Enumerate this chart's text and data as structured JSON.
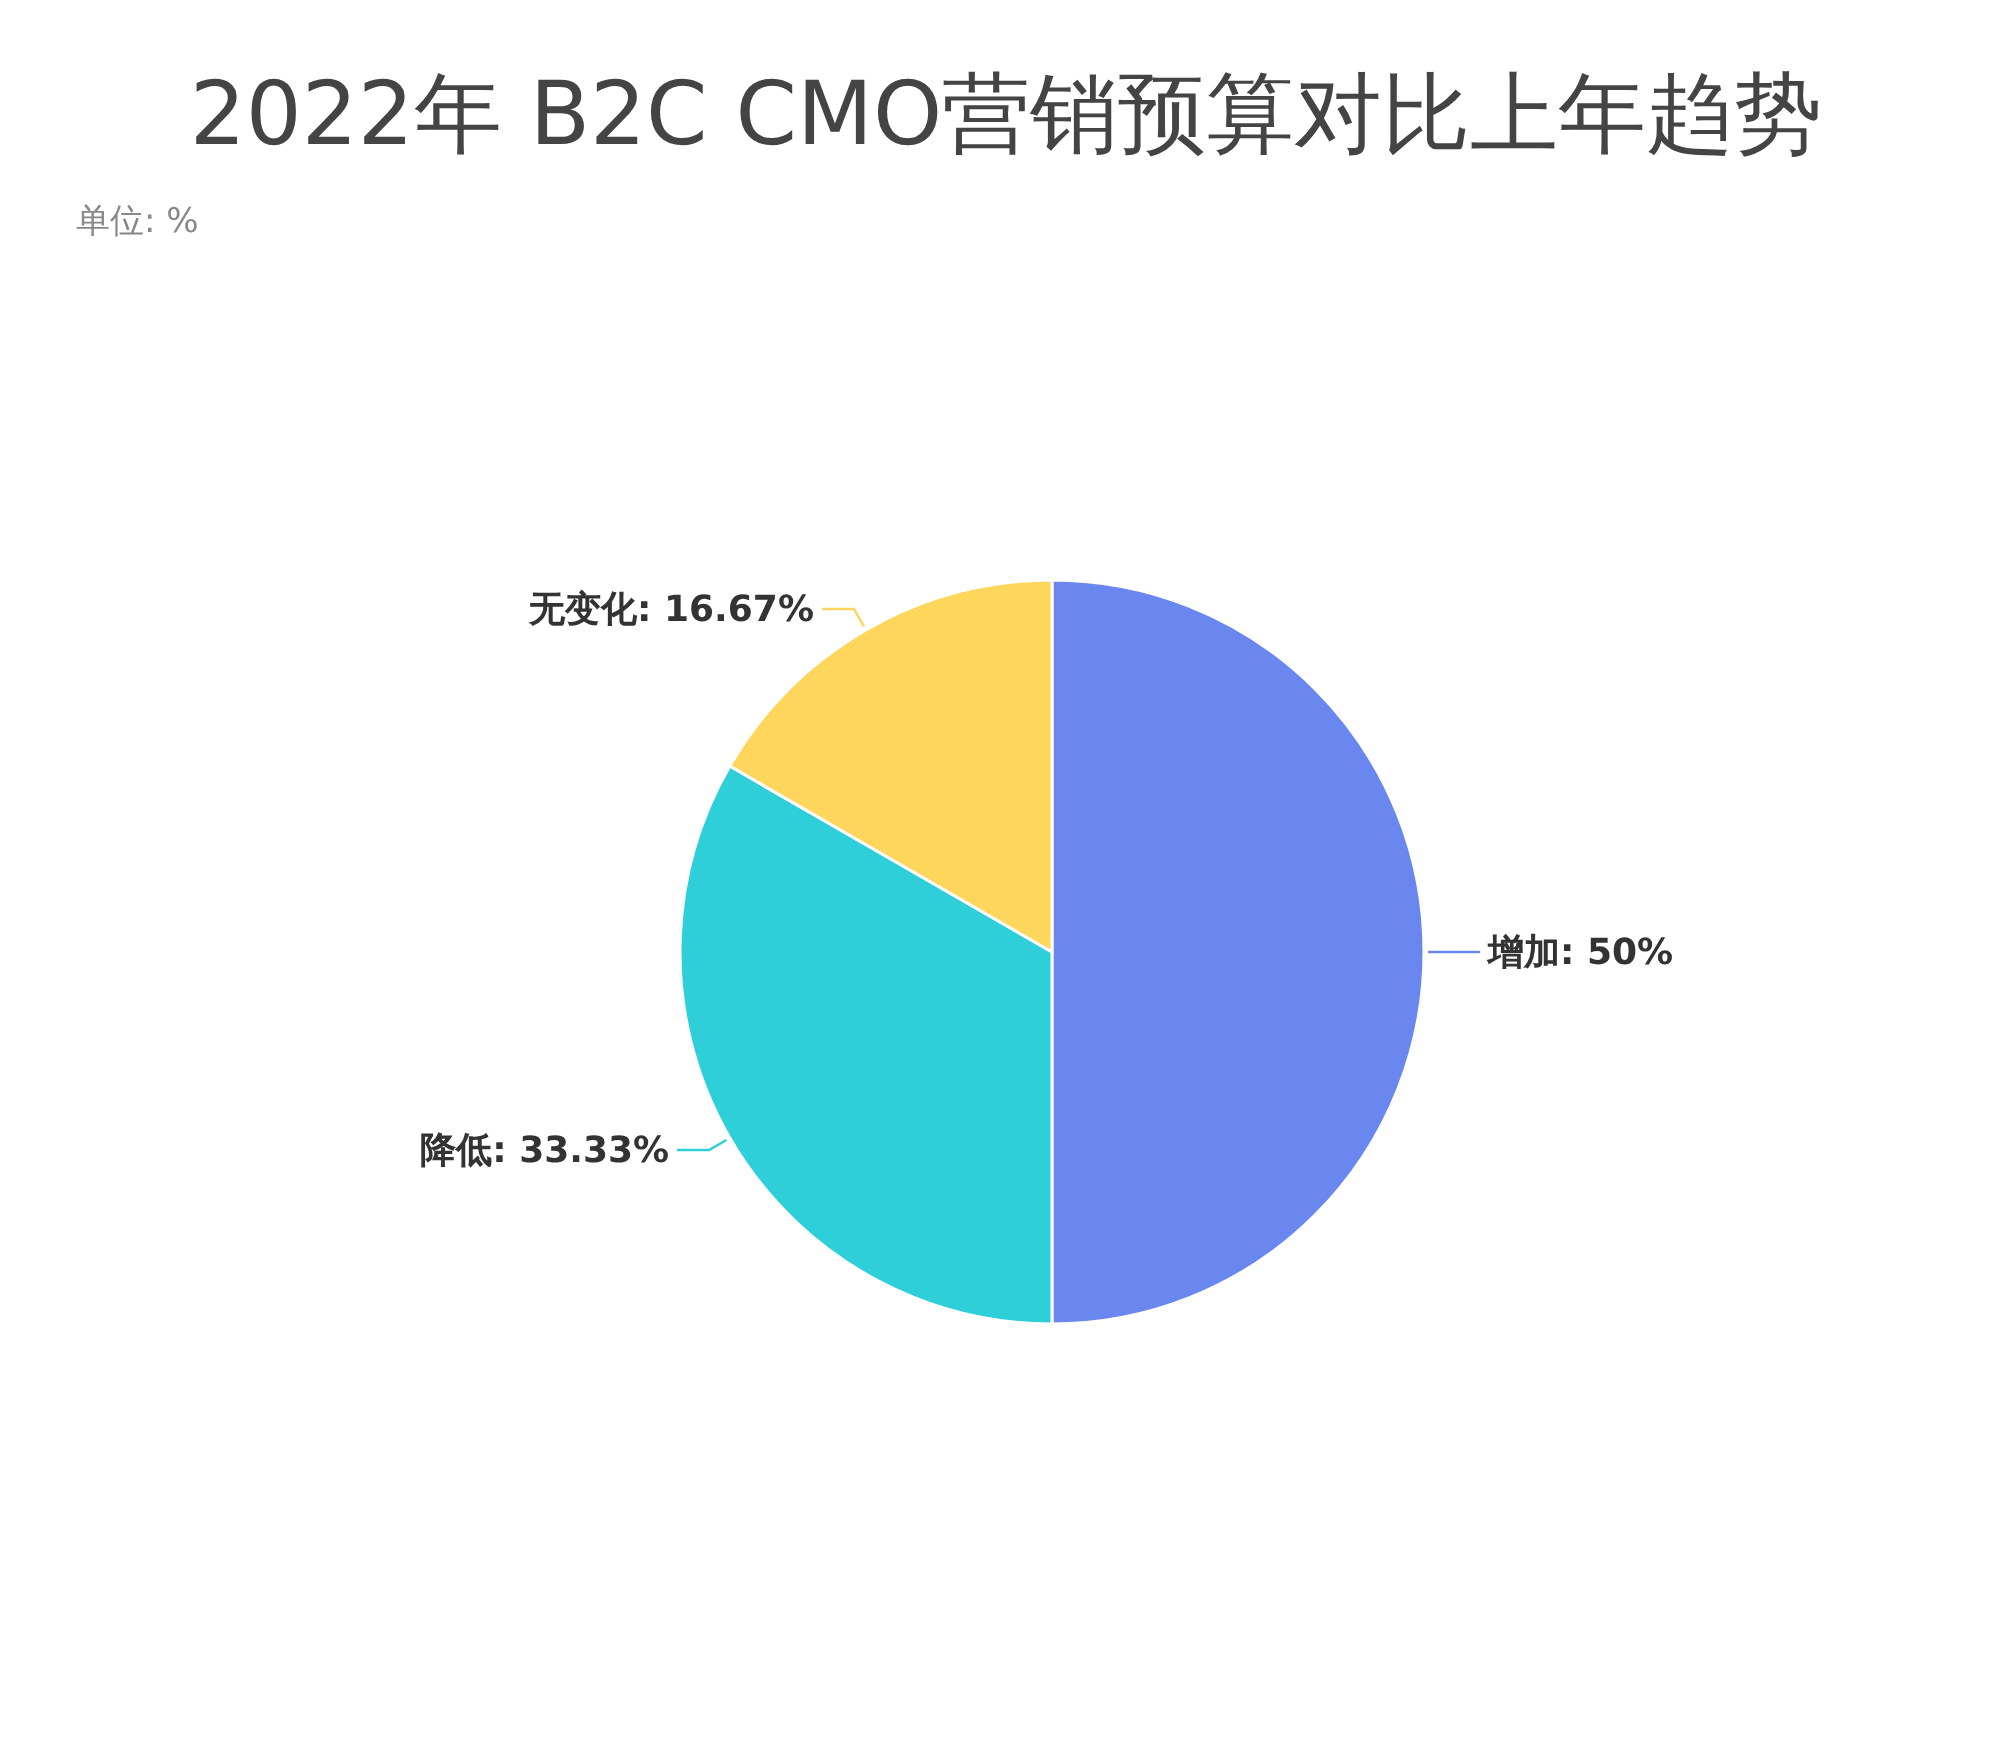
{
  "chart_data": {
    "type": "pie",
    "title": "2022年 B2C CMO营销预算对比上年趋势",
    "subtitle": "单位: %",
    "categories": [
      "增加",
      "降低",
      "无变化"
    ],
    "values": [
      50,
      33.33,
      16.67
    ],
    "colors": [
      "#6a87f0",
      "#2ecfd9",
      "#fdd65b"
    ],
    "value_labels": [
      "50%",
      "33.33%",
      "16.67%"
    ],
    "legend": false
  }
}
